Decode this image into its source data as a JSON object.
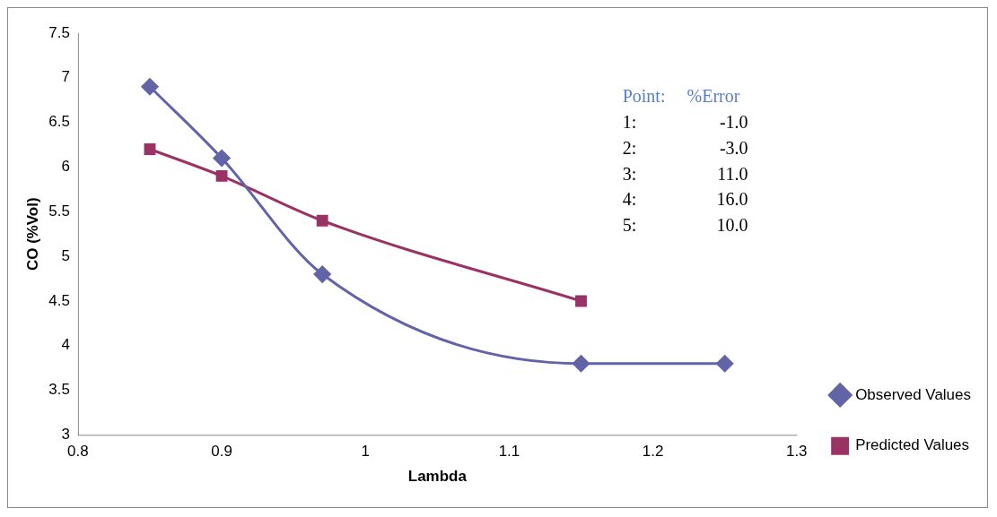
{
  "chart_data": {
    "type": "line",
    "xlabel": "Lambda",
    "ylabel": "CO (%Vol)",
    "xlim": [
      0.8,
      1.3
    ],
    "xticks": [
      0.8,
      0.9,
      1,
      1.1,
      1.2,
      1.3
    ],
    "ylim": [
      3,
      7.5
    ],
    "yticks": [
      3,
      3.5,
      4,
      4.5,
      5,
      5.5,
      6,
      6.5,
      7,
      7.5
    ],
    "grid": false,
    "legend": "right",
    "series": [
      {
        "name": "Observed Values",
        "color": "#6264a7",
        "marker": "diamond",
        "x": [
          0.85,
          0.9,
          0.97,
          1.15,
          1.25
        ],
        "values": [
          6.9,
          6.1,
          4.8,
          3.8,
          3.8
        ]
      },
      {
        "name": "Predicted Values",
        "color": "#993366",
        "marker": "square",
        "x": [
          0.85,
          0.9,
          0.97,
          1.15
        ],
        "values": [
          6.2,
          5.9,
          5.4,
          4.5
        ]
      }
    ],
    "annotations": [
      "Point:  %Error",
      "1:  -1.0",
      "2:  -3.0",
      "3:  11.0",
      "4:  16.0",
      "5:  10.0"
    ]
  }
}
